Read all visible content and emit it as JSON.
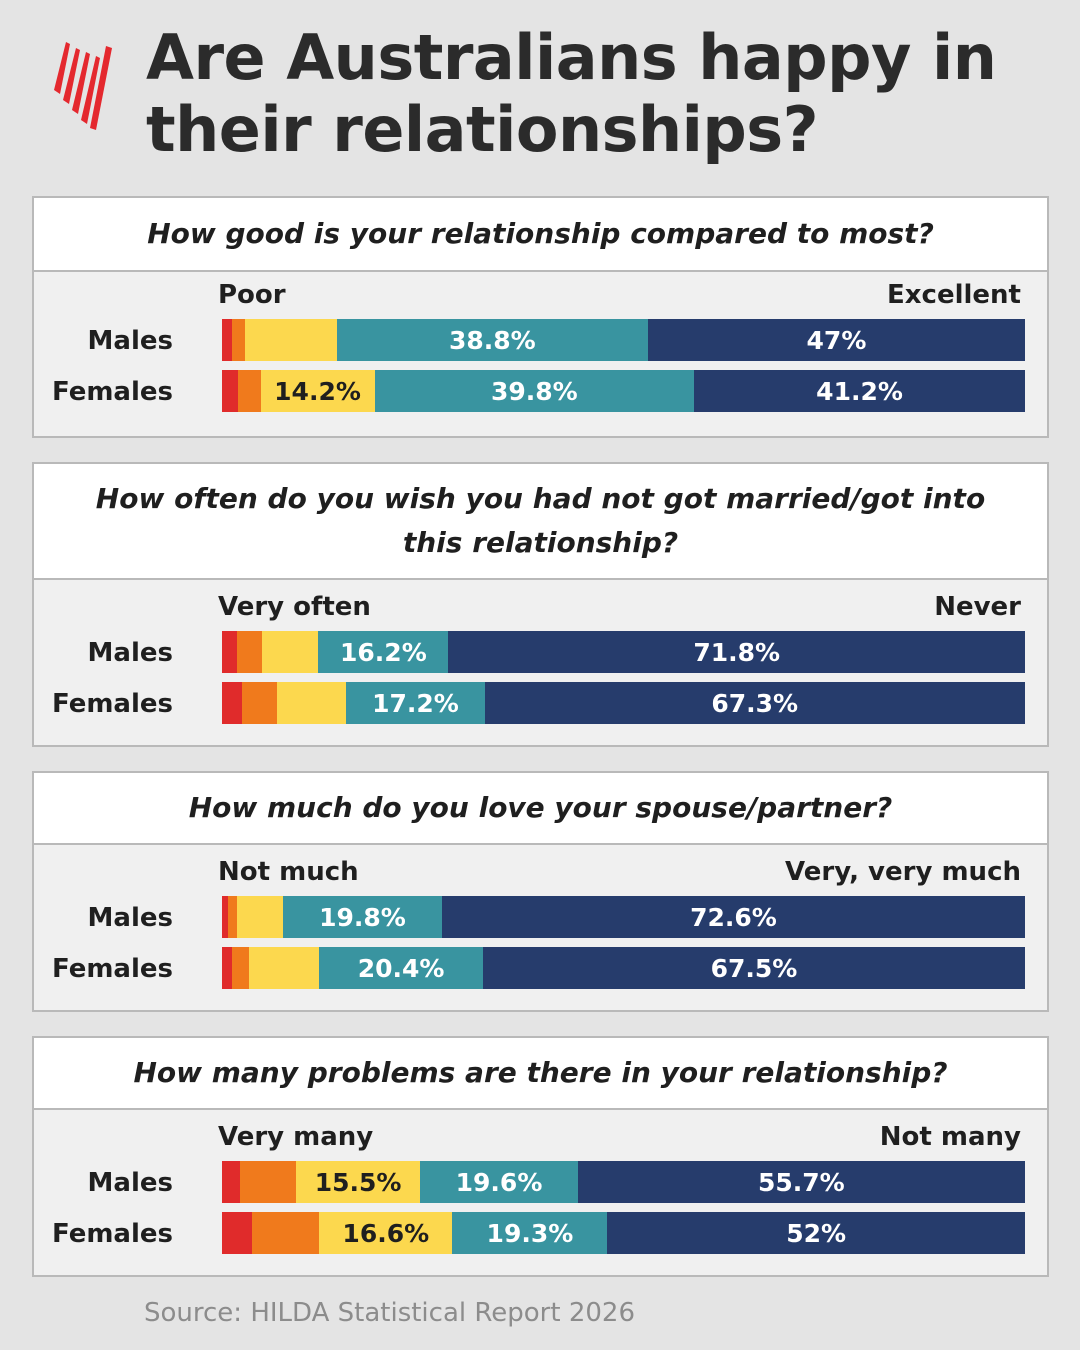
{
  "title": "Are Australians happy in their relationships?",
  "title_lines": [
    "Are Australians happy in",
    "their relationships?"
  ],
  "source": "Source: HILDA Statistical Report 2026",
  "colors": {
    "red": "#e02b2b",
    "orange": "#f07a1c",
    "yellow": "#fcd84e",
    "teal": "#3994a0",
    "navy": "#263c6c",
    "logo": "#e4282e"
  },
  "chart_data": [
    {
      "type": "bar",
      "orientation": "horizontal-stacked",
      "title": "How good is your relationship compared to most?",
      "scale_left": "Poor",
      "scale_right": "Excellent",
      "categories": [
        "Males",
        "Females"
      ],
      "rows": [
        {
          "label": "Males",
          "values": [
            1.2,
            1.7,
            11.4,
            38.8,
            47.0
          ],
          "labels": [
            "",
            "",
            "",
            "38.8%",
            "47%"
          ]
        },
        {
          "label": "Females",
          "values": [
            2.0,
            2.8,
            14.2,
            39.8,
            41.2
          ],
          "labels": [
            "",
            "",
            "14.2%",
            "39.8%",
            "41.2%"
          ]
        }
      ]
    },
    {
      "type": "bar",
      "orientation": "horizontal-stacked",
      "title": "How often do you wish you had not got married/got into this relationship?",
      "title_lines": [
        "How often do you wish you had not got married/got into",
        "this relationship?"
      ],
      "scale_left": "Very often",
      "scale_right": "Never",
      "categories": [
        "Males",
        "Females"
      ],
      "rows": [
        {
          "label": "Males",
          "values": [
            1.9,
            3.1,
            7.0,
            16.2,
            71.8
          ],
          "labels": [
            "",
            "",
            "",
            "16.2%",
            "71.8%"
          ]
        },
        {
          "label": "Females",
          "values": [
            2.5,
            4.3,
            8.7,
            17.2,
            67.3
          ],
          "labels": [
            "",
            "",
            "",
            "17.2%",
            "67.3%"
          ]
        }
      ]
    },
    {
      "type": "bar",
      "orientation": "horizontal-stacked",
      "title": "How much do you love your spouse/partner?",
      "scale_left": "Not much",
      "scale_right": "Very, very much",
      "categories": [
        "Males",
        "Females"
      ],
      "rows": [
        {
          "label": "Males",
          "values": [
            0.7,
            1.2,
            5.7,
            19.8,
            72.6
          ],
          "labels": [
            "",
            "",
            "",
            "19.8%",
            "72.6%"
          ]
        },
        {
          "label": "Females",
          "values": [
            1.3,
            2.1,
            8.7,
            20.4,
            67.5
          ],
          "labels": [
            "",
            "",
            "",
            "20.4%",
            "67.5%"
          ]
        }
      ]
    },
    {
      "type": "bar",
      "orientation": "horizontal-stacked",
      "title": "How many problems are there in your relationship?",
      "scale_left": "Very many",
      "scale_right": "Not many",
      "categories": [
        "Males",
        "Females"
      ],
      "rows": [
        {
          "label": "Males",
          "values": [
            2.3,
            6.9,
            15.5,
            19.6,
            55.7
          ],
          "labels": [
            "",
            "",
            "15.5%",
            "19.6%",
            "55.7%"
          ]
        },
        {
          "label": "Females",
          "values": [
            3.7,
            8.4,
            16.6,
            19.3,
            52.0
          ],
          "labels": [
            "",
            "",
            "16.6%",
            "19.3%",
            "52%"
          ]
        }
      ]
    }
  ]
}
